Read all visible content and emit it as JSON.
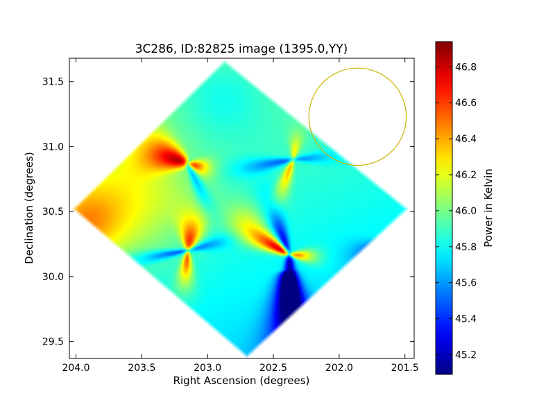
{
  "chart_data": {
    "type": "heatmap",
    "title": "3C286, ID:82825 image (1395.0,YY)",
    "xlabel": "Right Ascension (degrees)",
    "ylabel": "Declination (degrees)",
    "xlim": [
      204.05,
      201.43
    ],
    "ylim": [
      29.37,
      31.68
    ],
    "x_ticks": [
      204.0,
      203.5,
      203.0,
      202.5,
      202.0,
      201.5
    ],
    "x_tick_labels": [
      "204.0",
      "203.5",
      "203.0",
      "202.5",
      "202.0",
      "201.5"
    ],
    "y_ticks": [
      29.5,
      30.0,
      30.5,
      31.0,
      31.5
    ],
    "y_tick_labels": [
      "29.5",
      "30.0",
      "30.5",
      "31.0",
      "31.5"
    ],
    "colorbar": {
      "label": "Power in Kelvin",
      "min": 45.09,
      "max": 46.94,
      "colormap": "jet",
      "ticks": [
        45.2,
        45.4,
        45.6,
        45.8,
        46.0,
        46.2,
        46.4,
        46.6,
        46.8
      ],
      "tick_labels": [
        "45.2",
        "45.4",
        "45.6",
        "45.8",
        "46.0",
        "46.2",
        "46.4",
        "46.6",
        "46.8"
      ]
    },
    "footprint": [
      {
        "ra": 204.02,
        "dec": 30.52
      },
      {
        "ra": 202.87,
        "dec": 31.66
      },
      {
        "ra": 201.48,
        "dec": 30.52
      },
      {
        "ra": 202.7,
        "dec": 29.38
      }
    ],
    "background_level": 45.85,
    "features": [
      {
        "ra": 203.15,
        "dec": 30.87,
        "amp": 0.9,
        "lobe_deg": 160,
        "width": 0.14,
        "length": 0.32
      },
      {
        "ra": 203.15,
        "dec": 30.87,
        "amp": 0.75,
        "lobe_deg": -15,
        "width": 0.06,
        "length": 0.15
      },
      {
        "ra": 203.15,
        "dec": 30.87,
        "amp": -0.35,
        "lobe_deg": -65,
        "width": 0.06,
        "length": 0.4
      },
      {
        "ra": 202.35,
        "dec": 30.9,
        "amp": 0.55,
        "lobe_deg": -110,
        "width": 0.06,
        "length": 0.32
      },
      {
        "ra": 202.35,
        "dec": 30.9,
        "amp": 0.45,
        "lobe_deg": 80,
        "width": 0.05,
        "length": 0.18
      },
      {
        "ra": 202.35,
        "dec": 30.9,
        "amp": -0.4,
        "lobe_deg": 190,
        "width": 0.06,
        "length": 0.38
      },
      {
        "ra": 202.35,
        "dec": 30.9,
        "amp": -0.3,
        "lobe_deg": 5,
        "width": 0.05,
        "length": 0.3
      },
      {
        "ra": 203.15,
        "dec": 30.2,
        "amp": 0.8,
        "lobe_deg": 80,
        "width": 0.1,
        "length": 0.25
      },
      {
        "ra": 203.15,
        "dec": 30.2,
        "amp": 0.75,
        "lobe_deg": -95,
        "width": 0.06,
        "length": 0.25
      },
      {
        "ra": 203.15,
        "dec": 30.2,
        "amp": -0.45,
        "lobe_deg": 190,
        "width": 0.05,
        "length": 0.4
      },
      {
        "ra": 203.15,
        "dec": 30.2,
        "amp": -0.35,
        "lobe_deg": 15,
        "width": 0.05,
        "length": 0.3
      },
      {
        "ra": 202.38,
        "dec": 30.17,
        "amp": 1.05,
        "lobe_deg": 150,
        "width": 0.08,
        "length": 0.35
      },
      {
        "ra": 202.38,
        "dec": 30.17,
        "amp": 0.8,
        "lobe_deg": -5,
        "width": 0.05,
        "length": 0.18
      },
      {
        "ra": 202.38,
        "dec": 30.17,
        "amp": -0.65,
        "lobe_deg": -88,
        "width": 0.1,
        "length": 0.6
      },
      {
        "ra": 202.38,
        "dec": 30.17,
        "amp": -0.55,
        "lobe_deg": 110,
        "width": 0.07,
        "length": 0.4
      },
      {
        "ra": 202.4,
        "dec": 30.05,
        "amp": -0.6,
        "lobe_deg": -85,
        "width": 0.25,
        "length": 0.8
      },
      {
        "ra": 201.6,
        "dec": 30.25,
        "amp": -0.55,
        "lobe_deg": 200,
        "width": 0.08,
        "length": 0.25
      },
      {
        "ra": 203.55,
        "dec": 30.6,
        "amp": 0.3,
        "lobe_deg": 0,
        "width": 0.45,
        "length": 0.0
      },
      {
        "ra": 203.95,
        "dec": 30.4,
        "amp": 0.45,
        "lobe_deg": 0,
        "width": 0.3,
        "length": 0.0
      },
      {
        "ra": 202.7,
        "dec": 30.45,
        "amp": 0.15,
        "lobe_deg": 0,
        "width": 0.15,
        "length": 0.0
      },
      {
        "ra": 202.9,
        "dec": 31.4,
        "amp": -0.15,
        "lobe_deg": 0,
        "width": 0.35,
        "length": 0.0
      }
    ],
    "circle": {
      "ra": 201.86,
      "dec": 31.23,
      "radius_deg": 0.37,
      "color": "#c8b400"
    }
  }
}
